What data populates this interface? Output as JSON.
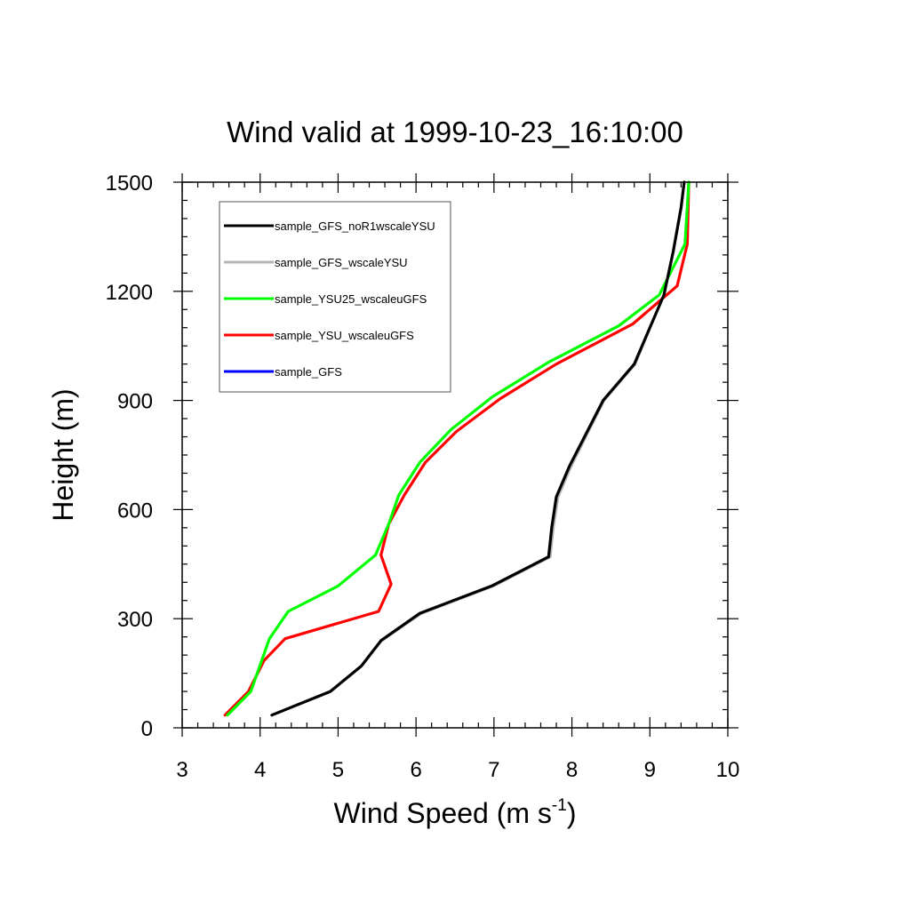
{
  "chart_data": {
    "type": "line",
    "title": "Wind valid at 1999-10-23_16:10:00",
    "xlabel": {
      "main": "Wind Speed (m s",
      "sup": "-1",
      "close": ")"
    },
    "ylabel": "Height (m)",
    "xlim": [
      3,
      10
    ],
    "ylim": [
      0,
      1500
    ],
    "xticks": [
      3,
      4,
      5,
      6,
      7,
      8,
      9,
      10
    ],
    "yticks": [
      0,
      300,
      600,
      900,
      1200,
      1500
    ],
    "legend_position": "top-left",
    "series": [
      {
        "name": "sample_GFS_noR1wscaleYSU",
        "color": "#000000",
        "points": [
          [
            4.15,
            35
          ],
          [
            4.9,
            100
          ],
          [
            5.3,
            170
          ],
          [
            5.55,
            240
          ],
          [
            6.05,
            315
          ],
          [
            6.97,
            390
          ],
          [
            7.7,
            470
          ],
          [
            7.74,
            550
          ],
          [
            7.8,
            635
          ],
          [
            7.97,
            720
          ],
          [
            8.4,
            900
          ],
          [
            8.8,
            1000
          ],
          [
            9.0,
            1100
          ],
          [
            9.18,
            1190
          ],
          [
            9.3,
            1310
          ],
          [
            9.4,
            1430
          ],
          [
            9.44,
            1500
          ]
        ]
      },
      {
        "name": "sample_GFS_wscaleYSU",
        "color": "#b4b4b4",
        "points": [
          [
            4.15,
            35
          ],
          [
            4.9,
            100
          ],
          [
            5.3,
            170
          ],
          [
            5.56,
            240
          ],
          [
            6.07,
            315
          ],
          [
            6.99,
            390
          ],
          [
            7.72,
            470
          ],
          [
            7.76,
            550
          ],
          [
            7.82,
            635
          ],
          [
            7.99,
            720
          ],
          [
            8.41,
            900
          ],
          [
            8.81,
            1000
          ],
          [
            9.0,
            1100
          ],
          [
            9.18,
            1190
          ],
          [
            9.3,
            1310
          ],
          [
            9.4,
            1430
          ],
          [
            9.44,
            1500
          ]
        ]
      },
      {
        "name": "sample_YSU25_wscaleuGFS",
        "color": "#00ff00",
        "points": [
          [
            3.58,
            35
          ],
          [
            3.88,
            100
          ],
          [
            4.12,
            245
          ],
          [
            4.36,
            320
          ],
          [
            5.0,
            390
          ],
          [
            5.48,
            475
          ],
          [
            5.65,
            560
          ],
          [
            5.78,
            640
          ],
          [
            6.05,
            730
          ],
          [
            6.45,
            820
          ],
          [
            6.98,
            910
          ],
          [
            7.7,
            1005
          ],
          [
            8.6,
            1105
          ],
          [
            9.12,
            1190
          ],
          [
            9.45,
            1330
          ],
          [
            9.5,
            1500
          ]
        ]
      },
      {
        "name": "sample_YSU_wscaleuGFS",
        "color": "#ff0000",
        "points": [
          [
            3.55,
            35
          ],
          [
            3.85,
            100
          ],
          [
            4.05,
            185
          ],
          [
            4.32,
            245
          ],
          [
            5.52,
            320
          ],
          [
            5.68,
            395
          ],
          [
            5.55,
            475
          ],
          [
            5.65,
            560
          ],
          [
            5.85,
            640
          ],
          [
            6.12,
            730
          ],
          [
            6.52,
            815
          ],
          [
            7.08,
            905
          ],
          [
            7.8,
            1000
          ],
          [
            8.78,
            1110
          ],
          [
            9.35,
            1215
          ],
          [
            9.48,
            1330
          ],
          [
            9.5,
            1500
          ]
        ]
      },
      {
        "name": "sample_GFS",
        "color": "#0000ff",
        "points": []
      }
    ]
  }
}
